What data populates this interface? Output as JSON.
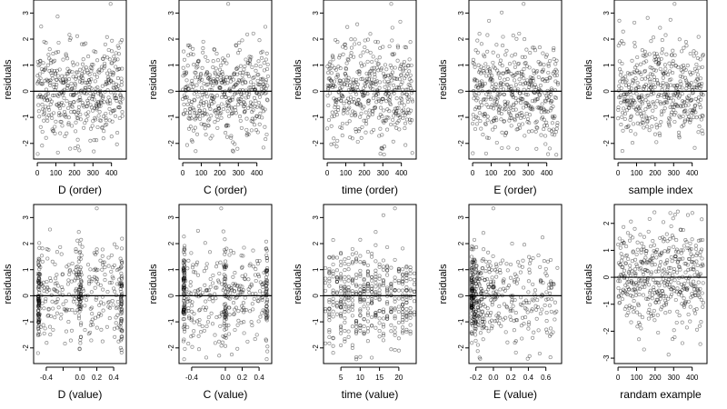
{
  "chart_data": [
    {
      "type": "scatter",
      "xlabel": "D (order)",
      "ylabel": "residuals",
      "xlim": [
        -20,
        480
      ],
      "ylim": [
        -2.6,
        3.5
      ],
      "xticks": [
        0,
        100,
        200,
        300,
        400
      ],
      "xtick_labels": [
        "0",
        "100",
        "200",
        "300",
        "400"
      ],
      "yticks": [
        -2,
        -1,
        0,
        1,
        2,
        3
      ],
      "ytick_labels": [
        "-2",
        "-1",
        "0",
        "1",
        "2",
        "3"
      ],
      "ref_line_y": 0,
      "n_points": 450,
      "pattern": "order",
      "x_range": [
        0,
        460
      ],
      "notable_points": [
        {
          "x": 395,
          "y": 3.35
        }
      ]
    },
    {
      "type": "scatter",
      "xlabel": "C (order)",
      "ylabel": "residuals",
      "xlim": [
        -20,
        480
      ],
      "ylim": [
        -2.6,
        3.5
      ],
      "xticks": [
        0,
        100,
        200,
        300,
        400
      ],
      "xtick_labels": [
        "0",
        "100",
        "200",
        "300",
        "400"
      ],
      "yticks": [
        -2,
        -1,
        0,
        1,
        2,
        3
      ],
      "ytick_labels": [
        "-2",
        "-1",
        "0",
        "1",
        "2",
        "3"
      ],
      "ref_line_y": 0,
      "n_points": 450,
      "pattern": "order",
      "x_range": [
        0,
        460
      ],
      "notable_points": [
        {
          "x": 245,
          "y": 3.35
        }
      ]
    },
    {
      "type": "scatter",
      "xlabel": "time (order)",
      "ylabel": "residuals",
      "xlim": [
        -20,
        480
      ],
      "ylim": [
        -2.6,
        3.5
      ],
      "xticks": [
        0,
        100,
        200,
        300,
        400
      ],
      "xtick_labels": [
        "0",
        "100",
        "200",
        "300",
        "400"
      ],
      "yticks": [
        -2,
        -1,
        0,
        1,
        2,
        3
      ],
      "ytick_labels": [
        "-2",
        "-1",
        "0",
        "1",
        "2",
        "3"
      ],
      "ref_line_y": 0,
      "n_points": 450,
      "pattern": "order",
      "x_range": [
        0,
        460
      ],
      "notable_points": [
        {
          "x": 345,
          "y": 3.35
        }
      ]
    },
    {
      "type": "scatter",
      "xlabel": "E (order)",
      "ylabel": "residuals",
      "xlim": [
        -20,
        480
      ],
      "ylim": [
        -2.6,
        3.5
      ],
      "xticks": [
        0,
        100,
        200,
        300,
        400
      ],
      "xtick_labels": [
        "0",
        "100",
        "200",
        "300",
        "400"
      ],
      "yticks": [
        -2,
        -1,
        0,
        1,
        2,
        3
      ],
      "ytick_labels": [
        "-2",
        "-1",
        "0",
        "1",
        "2",
        "3"
      ],
      "ref_line_y": 0,
      "n_points": 450,
      "pattern": "order",
      "x_range": [
        0,
        460
      ],
      "notable_points": [
        {
          "x": 275,
          "y": 3.35
        }
      ]
    },
    {
      "type": "scatter",
      "xlabel": "sample index",
      "ylabel": "residuals",
      "xlim": [
        -20,
        480
      ],
      "ylim": [
        -2.6,
        3.5
      ],
      "xticks": [
        0,
        100,
        200,
        300,
        400
      ],
      "xtick_labels": [
        "0",
        "100",
        "200",
        "300",
        "400"
      ],
      "yticks": [
        -2,
        -1,
        0,
        1,
        2,
        3
      ],
      "ytick_labels": [
        "-2",
        "-1",
        "0",
        "1",
        "2",
        "3"
      ],
      "ref_line_y": 0,
      "n_points": 450,
      "pattern": "order",
      "x_range": [
        0,
        460
      ],
      "notable_points": [
        {
          "x": 305,
          "y": 3.35
        }
      ]
    },
    {
      "type": "scatter",
      "xlabel": "D (value)",
      "ylabel": "residuals",
      "xlim": [
        -0.55,
        0.55
      ],
      "ylim": [
        -2.6,
        3.5
      ],
      "xticks": [
        -0.4,
        -0.2,
        0.0,
        0.2,
        0.4
      ],
      "xtick_labels": [
        "-0.4",
        "",
        "0.0",
        "0.2",
        "0.4"
      ],
      "yticks": [
        -2,
        -1,
        0,
        1,
        2,
        3
      ],
      "ytick_labels": [
        "-2",
        "-1",
        "0",
        "1",
        "2",
        "3"
      ],
      "ref_line_y": 0,
      "n_points": 450,
      "pattern": "value",
      "x_range": [
        -0.5,
        0.5
      ],
      "notable_points": [
        {
          "x": 0.2,
          "y": 3.35
        }
      ]
    },
    {
      "type": "scatter",
      "xlabel": "C (value)",
      "ylabel": "residuals",
      "xlim": [
        -0.55,
        0.55
      ],
      "ylim": [
        -2.6,
        3.5
      ],
      "xticks": [
        -0.4,
        0.0,
        0.2,
        0.4
      ],
      "xtick_labels": [
        "-0.4",
        "0.0",
        "0.2",
        "0.4"
      ],
      "yticks": [
        -2,
        -1,
        0,
        1,
        2,
        3
      ],
      "ytick_labels": [
        "-2",
        "-1",
        "0",
        "1",
        "2",
        "3"
      ],
      "ref_line_y": 0,
      "n_points": 450,
      "pattern": "value",
      "x_range": [
        -0.5,
        0.5
      ],
      "notable_points": [
        {
          "x": -0.05,
          "y": 3.35
        }
      ]
    },
    {
      "type": "scatter",
      "xlabel": "time (value)",
      "ylabel": "residuals",
      "xlim": [
        0.5,
        24.5
      ],
      "ylim": [
        -2.6,
        3.5
      ],
      "xticks": [
        5,
        10,
        15,
        20
      ],
      "xtick_labels": [
        "5",
        "10",
        "15",
        "20"
      ],
      "yticks": [
        -2,
        -1,
        0,
        1,
        2,
        3
      ],
      "ytick_labels": [
        "-2",
        "-1",
        "0",
        "1",
        "2",
        "3"
      ],
      "ref_line_y": 0,
      "n_points": 450,
      "pattern": "discrete",
      "x_range": [
        1,
        24
      ],
      "notable_points": [
        {
          "x": 19,
          "y": 3.35
        }
      ]
    },
    {
      "type": "scatter",
      "xlabel": "E (value)",
      "ylabel": "residuals",
      "xlim": [
        -0.28,
        0.78
      ],
      "ylim": [
        -2.6,
        3.5
      ],
      "xticks": [
        -0.2,
        0.0,
        0.2,
        0.4,
        0.6
      ],
      "xtick_labels": [
        "-0.2",
        "0.0",
        "0.2",
        "0.4",
        "0.6"
      ],
      "yticks": [
        -2,
        -1,
        0,
        1,
        2,
        3
      ],
      "ytick_labels": [
        "-2",
        "-1",
        "0",
        "1",
        "2",
        "3"
      ],
      "ref_line_y": 0,
      "n_points": 450,
      "pattern": "skewed",
      "x_range": [
        -0.25,
        0.75
      ],
      "notable_points": [
        {
          "x": 0.0,
          "y": 3.35
        }
      ]
    },
    {
      "type": "scatter",
      "xlabel": "randam example",
      "ylabel": "residuals",
      "xlim": [
        -20,
        480
      ],
      "ylim": [
        -3.2,
        2.7
      ],
      "xticks": [
        0,
        100,
        200,
        300,
        400
      ],
      "xtick_labels": [
        "0",
        "100",
        "200",
        "300",
        "400"
      ],
      "yticks": [
        -3,
        -2,
        -1,
        0,
        1,
        2
      ],
      "ytick_labels": [
        "-3",
        "-2",
        "-1",
        "0",
        "1",
        "2"
      ],
      "ref_line_y": 0,
      "n_points": 450,
      "pattern": "order",
      "x_range": [
        0,
        460
      ],
      "notable_points": []
    }
  ]
}
